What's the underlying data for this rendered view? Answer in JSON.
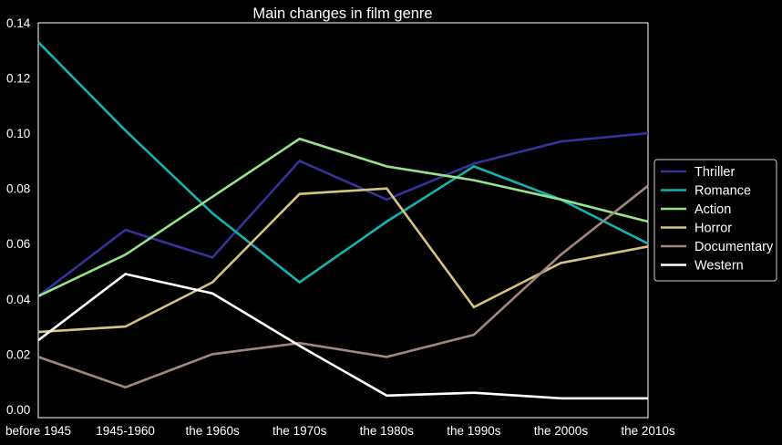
{
  "chart_data": {
    "type": "line",
    "title": "Main changes in film genre",
    "xlabel": "",
    "ylabel": "",
    "categories": [
      "before 1945",
      "1945-1960",
      "the 1960s",
      "the 1970s",
      "the 1980s",
      "the 1990s",
      "the 2000s",
      "the 2010s"
    ],
    "ylim": [
      -0.003,
      0.14
    ],
    "yticks": [
      "0.00",
      "0.02",
      "0.04",
      "0.06",
      "0.08",
      "0.10",
      "0.12",
      "0.14"
    ],
    "grid": false,
    "legend_position": "right",
    "background": "#000000",
    "series": [
      {
        "name": "Thriller",
        "color": "#33339a",
        "values": [
          0.041,
          0.065,
          0.055,
          0.09,
          0.076,
          0.089,
          0.097,
          0.1
        ]
      },
      {
        "name": "Romance",
        "color": "#17b1b1",
        "values": [
          0.133,
          0.101,
          0.071,
          0.046,
          0.068,
          0.088,
          0.076,
          0.06
        ]
      },
      {
        "name": "Action",
        "color": "#98e28b",
        "values": [
          0.041,
          0.056,
          0.077,
          0.098,
          0.088,
          0.083,
          0.076,
          0.068
        ]
      },
      {
        "name": "Horror",
        "color": "#d7c37f",
        "values": [
          0.028,
          0.03,
          0.046,
          0.078,
          0.08,
          0.037,
          0.053,
          0.059
        ]
      },
      {
        "name": "Documentary",
        "color": "#a3877e",
        "values": [
          0.019,
          0.008,
          0.02,
          0.024,
          0.019,
          0.027,
          0.056,
          0.081
        ]
      },
      {
        "name": "Western",
        "color": "#ffffff",
        "values": [
          0.025,
          0.049,
          0.042,
          0.023,
          0.005,
          0.006,
          0.004,
          0.004
        ]
      }
    ]
  }
}
